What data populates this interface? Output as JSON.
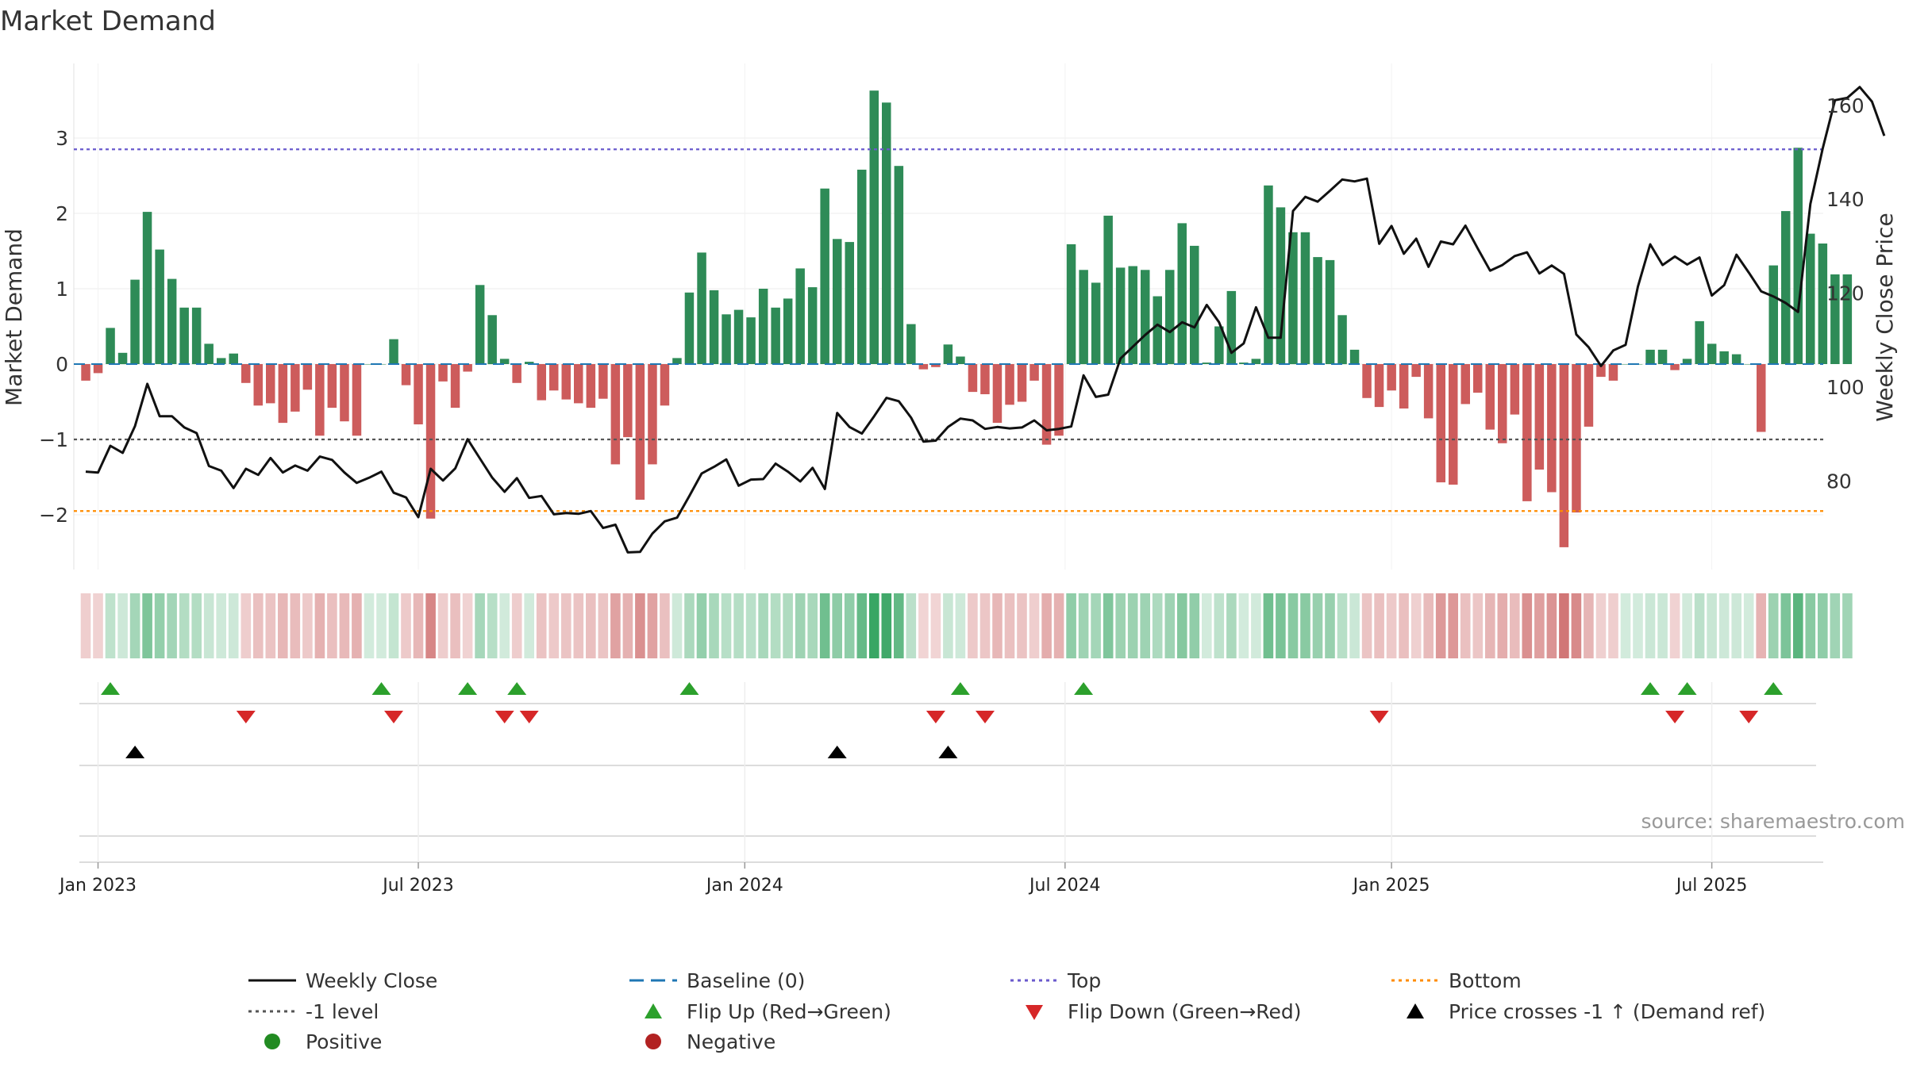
{
  "chart_data": {
    "type": "bar",
    "title": "Market Demand",
    "ylabel": "Market Demand",
    "y2label": "Weekly Close Price",
    "ylim": [
      -2.75,
      4.0
    ],
    "y2lim": [
      60,
      170
    ],
    "yticks": [
      3,
      2,
      1,
      0,
      -1,
      -2
    ],
    "ytick_labels": [
      "3",
      "2",
      "1",
      "0",
      "−1",
      "−2"
    ],
    "y2ticks": [
      160,
      140,
      120,
      100,
      80
    ],
    "xticks": [
      {
        "label": "Jan 2023",
        "week": 1
      },
      {
        "label": "Jul 2023",
        "week": 27
      },
      {
        "label": "Jan 2024",
        "week": 53.5
      },
      {
        "label": "Jul 2024",
        "week": 79.5
      },
      {
        "label": "Jan 2025",
        "week": 106
      },
      {
        "label": "Jul 2025",
        "week": 132
      }
    ],
    "reference_lines": {
      "top": 2.85,
      "bottom": -1.95,
      "minus_one": -1.0,
      "baseline": 0
    },
    "demand": [
      -0.22,
      -0.12,
      0.48,
      0.15,
      1.12,
      2.02,
      1.52,
      1.13,
      0.75,
      0.75,
      0.27,
      0.08,
      0.14,
      -0.25,
      -0.55,
      -0.52,
      -0.78,
      -0.63,
      -0.34,
      -0.95,
      -0.58,
      -0.76,
      -0.95,
      0.0,
      0.0,
      0.33,
      -0.28,
      -0.8,
      -2.05,
      -0.23,
      -0.58,
      -0.1,
      1.05,
      0.65,
      0.07,
      -0.25,
      0.03,
      -0.48,
      -0.35,
      -0.47,
      -0.52,
      -0.58,
      -0.46,
      -1.33,
      -0.97,
      -1.8,
      -1.33,
      -0.55,
      0.08,
      0.95,
      1.48,
      0.98,
      0.66,
      0.72,
      0.62,
      1.0,
      0.75,
      0.87,
      1.27,
      1.02,
      2.33,
      1.66,
      1.62,
      2.58,
      3.63,
      3.47,
      2.63,
      0.53,
      -0.07,
      -0.04,
      0.26,
      0.1,
      -0.37,
      -0.4,
      -0.78,
      -0.54,
      -0.5,
      -0.22,
      -1.07,
      -0.95,
      1.59,
      1.25,
      1.08,
      1.97,
      1.28,
      1.3,
      1.25,
      0.9,
      1.25,
      1.87,
      1.57,
      0.02,
      0.5,
      0.97,
      0.02,
      0.07,
      2.37,
      2.08,
      1.75,
      1.75,
      1.42,
      1.38,
      0.65,
      0.19,
      -0.45,
      -0.57,
      -0.35,
      -0.59,
      -0.17,
      -0.72,
      -1.57,
      -1.6,
      -0.53,
      -0.38,
      -0.87,
      -1.05,
      -0.67,
      -1.82,
      -1.4,
      -1.7,
      -2.43,
      -1.97,
      -0.83,
      -0.17,
      -0.22,
      0.0,
      0.0,
      0.19,
      0.19,
      -0.08,
      0.07,
      0.57,
      0.27,
      0.17,
      0.13,
      0.0,
      -0.9,
      1.31,
      2.03,
      2.87,
      1.73,
      1.6,
      1.19,
      1.19
    ],
    "close": [
      82,
      81.8,
      87.5,
      86,
      91.7,
      100.7,
      93.8,
      93.8,
      91.4,
      90.2,
      83.2,
      82.2,
      78.5,
      82.6,
      81.3,
      84.9,
      81.8,
      83.3,
      82.2,
      85.2,
      84.5,
      81.8,
      79.6,
      80.7,
      82,
      77.5,
      76.5,
      72.3,
      82.6,
      80.1,
      82.7,
      88.9,
      84.8,
      80.7,
      77.7,
      80.6,
      76.4,
      76.8,
      72.9,
      73.2,
      73,
      73.6,
      70,
      70.7,
      64.8,
      64.9,
      68.8,
      71.4,
      72.2,
      76.8,
      81.6,
      83,
      84.6,
      79,
      80.3,
      80.4,
      83.7,
      82,
      79.9,
      82.8,
      78.3,
      94.5,
      91.5,
      90.1,
      93.8,
      97.7,
      97,
      93.5,
      88.4,
      88.6,
      91.5,
      93.3,
      92.9,
      91.1,
      91.5,
      91.2,
      91.4,
      92.9,
      90.8,
      91.1,
      91.6,
      102.5,
      97.9,
      98.4,
      106.1,
      108.6,
      111.1,
      113.3,
      111.7,
      113.8,
      112.7,
      117.5,
      113.8,
      107.3,
      109.3,
      117,
      110.5,
      110.5,
      137.5,
      140.5,
      139.5,
      141.8,
      144.2,
      143.8,
      144.4,
      130.5,
      134.3,
      128.4,
      131.6,
      125.6,
      131,
      130.4,
      134.4,
      129.5,
      124.8,
      126,
      127.9,
      128.7,
      124.2,
      125.9,
      124.1,
      111.2,
      108.5,
      104.5,
      107.8,
      109,
      121.4,
      130.4,
      126,
      127.8,
      126.1,
      127.6,
      119.5,
      121.7,
      128.2,
      124.4,
      120.4,
      119.3,
      117.9,
      116,
      139,
      150.8,
      161.1,
      161.6,
      163.9,
      160.8,
      153.5
    ],
    "flip_up_weeks": [
      2,
      24,
      31,
      35,
      49,
      71,
      81,
      127,
      130,
      137
    ],
    "flip_down_weeks": [
      13,
      25,
      34,
      36,
      69,
      73,
      105,
      129,
      135
    ],
    "price_cross_weeks": [
      4,
      61,
      70
    ],
    "source": "source: sharemaestro.com",
    "legend": {
      "weekly_close": "Weekly Close",
      "baseline": "Baseline (0)",
      "top": "Top",
      "bottom": "Bottom",
      "minus_one": "-1 level",
      "flip_up": "Flip Up (Red→Green)",
      "flip_down": "Flip Down (Green→Red)",
      "price_cross": "Price crosses -1 ↑ (Demand ref)",
      "positive": "Positive",
      "negative": "Negative"
    },
    "colors": {
      "positive": "#2e8b57",
      "negative": "#cd5c5c",
      "close": "#111111",
      "baseline": "#1f77b4",
      "top": "#6a5acd",
      "bottom": "#ff8c00",
      "minus_one": "#555555",
      "flip_up": "#2ca02c",
      "flip_down": "#d62728",
      "price_cross": "#000000",
      "legend_positive": "#228b22",
      "legend_negative": "#b22222"
    }
  }
}
